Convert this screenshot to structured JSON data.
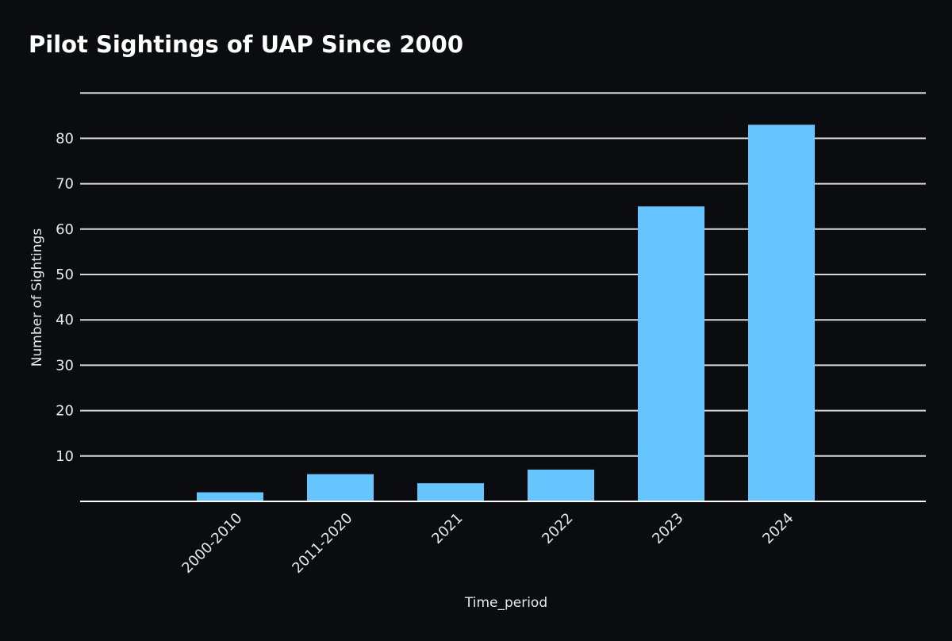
{
  "chart_data": {
    "type": "bar",
    "title": "Pilot Sightings of UAP Since 2000",
    "xlabel": "Time_period",
    "ylabel": "Number of Sightings",
    "categories": [
      "2000-2010",
      "2011-2020",
      "2021",
      "2022",
      "2023",
      "2024"
    ],
    "values": [
      2,
      6,
      4,
      7,
      65,
      83
    ],
    "ylim": [
      0,
      90
    ],
    "yticks": [
      10,
      20,
      30,
      40,
      50,
      60,
      70,
      80
    ],
    "grid": true,
    "bar_color": "#66c5ff",
    "background": "#0b0c10"
  }
}
